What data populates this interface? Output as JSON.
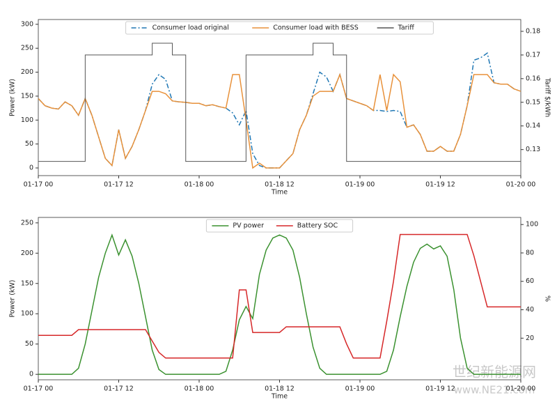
{
  "chart_data": [
    {
      "type": "line",
      "x": [
        0,
        1,
        2,
        3,
        4,
        5,
        6,
        7,
        8,
        9,
        10,
        11,
        12,
        13,
        14,
        15,
        16,
        17,
        18,
        19,
        20,
        21,
        22,
        23,
        24,
        25,
        26,
        27,
        28,
        29,
        30,
        31,
        32,
        33,
        34,
        35,
        36,
        37,
        38,
        39,
        40,
        41,
        42,
        43,
        44,
        45,
        46,
        47,
        48,
        49,
        50,
        51,
        52,
        53,
        54,
        55,
        56,
        57,
        58,
        59,
        60,
        61,
        62,
        63,
        64,
        65,
        66,
        67,
        68,
        69,
        70,
        71,
        72
      ],
      "xlim": [
        0,
        72
      ],
      "xticks": [
        {
          "value": 0,
          "label": "01-17 00"
        },
        {
          "value": 12,
          "label": "01-17 12"
        },
        {
          "value": 24,
          "label": "01-18 00"
        },
        {
          "value": 36,
          "label": "01-18 12"
        },
        {
          "value": 48,
          "label": "01-19 00"
        },
        {
          "value": 60,
          "label": "01-19 12"
        },
        {
          "value": 72,
          "label": "01-20 00"
        }
      ],
      "x_label": "Time",
      "y_label": "Power (kW)",
      "y2_label": "Tariff $/kWh",
      "ylim": [
        -16,
        310
      ],
      "yticks": [
        0,
        50,
        100,
        150,
        200,
        250,
        300
      ],
      "y2lim": [
        0.119,
        0.185
      ],
      "y2ticks": [
        0.13,
        0.14,
        0.15,
        0.16,
        0.17,
        0.18
      ],
      "legend": "top",
      "series": [
        {
          "name": "Consumer load original",
          "color": "#1f77b4",
          "dash": "dashdot",
          "values": [
            145,
            130,
            125,
            123,
            138,
            130,
            110,
            145,
            110,
            65,
            20,
            5,
            80,
            20,
            45,
            80,
            120,
            175,
            195,
            185,
            140,
            138,
            137,
            135,
            135,
            130,
            132,
            128,
            125,
            115,
            90,
            120,
            30,
            5,
            0,
            0,
            0,
            15,
            30,
            80,
            110,
            155,
            200,
            190,
            160,
            195,
            145,
            140,
            135,
            130,
            120,
            120,
            118,
            120,
            118,
            85,
            90,
            70,
            35,
            35,
            45,
            35,
            35,
            70,
            130,
            225,
            230,
            240,
            178,
            175,
            175,
            165,
            160
          ]
        },
        {
          "name": "Consumer load with BESS",
          "color": "#e8913a",
          "values": [
            145,
            130,
            125,
            123,
            138,
            130,
            110,
            145,
            110,
            65,
            20,
            5,
            80,
            20,
            45,
            80,
            120,
            160,
            160,
            155,
            140,
            138,
            137,
            135,
            135,
            130,
            132,
            128,
            125,
            195,
            195,
            100,
            0,
            10,
            0,
            0,
            0,
            15,
            30,
            80,
            110,
            150,
            160,
            160,
            160,
            195,
            145,
            140,
            135,
            130,
            120,
            195,
            120,
            195,
            180,
            85,
            90,
            70,
            35,
            35,
            45,
            35,
            35,
            70,
            130,
            195,
            195,
            195,
            178,
            175,
            175,
            165,
            160
          ]
        },
        {
          "name": "Tariff",
          "color": "#555555",
          "axis": "y2",
          "step": true,
          "values": [
            0.125,
            0.125,
            0.125,
            0.125,
            0.125,
            0.125,
            0.125,
            0.17,
            0.17,
            0.17,
            0.17,
            0.17,
            0.17,
            0.17,
            0.17,
            0.17,
            0.17,
            0.175,
            0.175,
            0.175,
            0.17,
            0.17,
            0.125,
            0.125,
            0.125,
            0.125,
            0.125,
            0.125,
            0.125,
            0.125,
            0.125,
            0.17,
            0.17,
            0.17,
            0.17,
            0.17,
            0.17,
            0.17,
            0.17,
            0.17,
            0.17,
            0.175,
            0.175,
            0.175,
            0.17,
            0.17,
            0.125,
            0.125,
            0.125,
            0.125,
            0.125,
            0.125,
            0.125,
            0.125,
            0.125,
            0.125,
            0.125,
            0.125,
            0.125,
            0.125,
            0.125,
            0.125,
            0.125,
            0.125,
            0.125,
            0.125,
            0.125,
            0.125,
            0.125,
            0.125,
            0.125,
            0.125,
            0.125
          ]
        }
      ]
    },
    {
      "type": "line",
      "x": [
        0,
        1,
        2,
        3,
        4,
        5,
        6,
        7,
        8,
        9,
        10,
        11,
        12,
        13,
        14,
        15,
        16,
        17,
        18,
        19,
        20,
        21,
        22,
        23,
        24,
        25,
        26,
        27,
        28,
        29,
        30,
        31,
        32,
        33,
        34,
        35,
        36,
        37,
        38,
        39,
        40,
        41,
        42,
        43,
        44,
        45,
        46,
        47,
        48,
        49,
        50,
        51,
        52,
        53,
        54,
        55,
        56,
        57,
        58,
        59,
        60,
        61,
        62,
        63,
        64,
        65,
        66,
        67,
        68,
        69,
        70,
        71,
        72
      ],
      "xlim": [
        0,
        72
      ],
      "xticks": [
        {
          "value": 0,
          "label": "01-17 00"
        },
        {
          "value": 12,
          "label": "01-17 12"
        },
        {
          "value": 24,
          "label": "01-18 00"
        },
        {
          "value": 36,
          "label": "01-18 12"
        },
        {
          "value": 48,
          "label": "01-19 00"
        },
        {
          "value": 60,
          "label": "01-19 12"
        },
        {
          "value": 72,
          "label": "01-20 00"
        }
      ],
      "x_label": "Time",
      "y_label": "Power (kW)",
      "y2_label": "%",
      "ylim": [
        -9,
        259
      ],
      "yticks": [
        0,
        50,
        100,
        150,
        200,
        250
      ],
      "y2lim": [
        -9.3,
        105
      ],
      "y2ticks": [
        20,
        40,
        60,
        80,
        100
      ],
      "legend": "top",
      "series": [
        {
          "name": "PV power",
          "color": "#3a912f",
          "values": [
            0,
            0,
            0,
            0,
            0,
            0,
            10,
            50,
            105,
            160,
            200,
            230,
            197,
            222,
            195,
            150,
            95,
            40,
            8,
            0,
            0,
            0,
            0,
            0,
            0,
            0,
            0,
            0,
            5,
            40,
            90,
            112,
            92,
            165,
            205,
            225,
            230,
            225,
            205,
            160,
            100,
            45,
            10,
            0,
            0,
            0,
            0,
            0,
            0,
            0,
            0,
            0,
            5,
            40,
            95,
            145,
            185,
            208,
            215,
            207,
            212,
            195,
            140,
            60,
            10,
            0,
            0,
            0,
            0,
            0,
            0,
            0,
            0
          ]
        },
        {
          "name": "Battery SOC",
          "color": "#d62728",
          "axis": "y2",
          "values": [
            22,
            22,
            22,
            22,
            22,
            22,
            26,
            26,
            26,
            26,
            26,
            26,
            26,
            26,
            26,
            26,
            26,
            18,
            10,
            6,
            6,
            6,
            6,
            6,
            6,
            6,
            6,
            6,
            6,
            6,
            54,
            54,
            24,
            24,
            24,
            24,
            24,
            28,
            28,
            28,
            28,
            28,
            28,
            28,
            28,
            28,
            16,
            6,
            6,
            6,
            6,
            6,
            32,
            60,
            93,
            93,
            93,
            93,
            93,
            93,
            93,
            93,
            93,
            93,
            93,
            78,
            60,
            42,
            42,
            42,
            42,
            42,
            42
          ]
        }
      ]
    }
  ],
  "watermark": [
    "世纪新能源网",
    "www.NE21.com"
  ]
}
